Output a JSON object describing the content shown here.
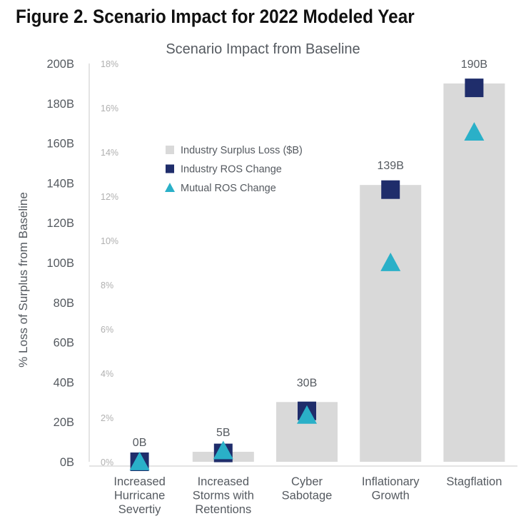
{
  "figure_title": "Figure 2. Scenario Impact for 2022 Modeled Year",
  "chart_data": {
    "type": "bar",
    "title": "Scenario Impact from Baseline",
    "ylabel": "% Loss of Surplus from Baseline",
    "xlabel": "",
    "categories": [
      [
        "Increased",
        "Hurricane",
        "Severtiy"
      ],
      [
        "Increased",
        "Storms with",
        "Retentions"
      ],
      [
        "Cyber",
        "Sabotage"
      ],
      [
        "Inflationary",
        "Growth"
      ],
      [
        "Stagflation"
      ]
    ],
    "left_axis": {
      "ylim": [
        0,
        200
      ],
      "ticks": [
        0,
        20,
        40,
        60,
        80,
        100,
        120,
        140,
        160,
        180,
        200
      ],
      "tick_labels": [
        "0B",
        "20B",
        "40B",
        "60B",
        "80B",
        "100B",
        "120B",
        "140B",
        "160B",
        "180B",
        "200B"
      ]
    },
    "right_axis": {
      "ylim": [
        0,
        18
      ],
      "ticks": [
        0,
        2,
        4,
        6,
        8,
        10,
        12,
        14,
        16,
        18
      ],
      "tick_labels": [
        "0%",
        "2%",
        "4%",
        "6%",
        "8%",
        "10%",
        "12%",
        "14%",
        "16%",
        "18%"
      ]
    },
    "series": [
      {
        "name": "Industry Surplus Loss ($B)",
        "kind": "bar",
        "axis": "left",
        "color": "#d9d9d9",
        "values": [
          0,
          5,
          30,
          139,
          190
        ],
        "data_labels": [
          "0B",
          "5B",
          "30B",
          "139B",
          "190B"
        ]
      },
      {
        "name": "Industry ROS Change",
        "kind": "square",
        "axis": "right",
        "color": "#1f2d6b",
        "values": [
          0,
          0.4,
          2.3,
          12.3,
          16.9
        ]
      },
      {
        "name": "Mutual ROS Change",
        "kind": "triangle",
        "axis": "right",
        "color": "#2ab0c8",
        "values": [
          0,
          0.5,
          2.1,
          9.0,
          14.9
        ]
      }
    ],
    "grid": false,
    "legend_position": "upper-left inside plot"
  }
}
